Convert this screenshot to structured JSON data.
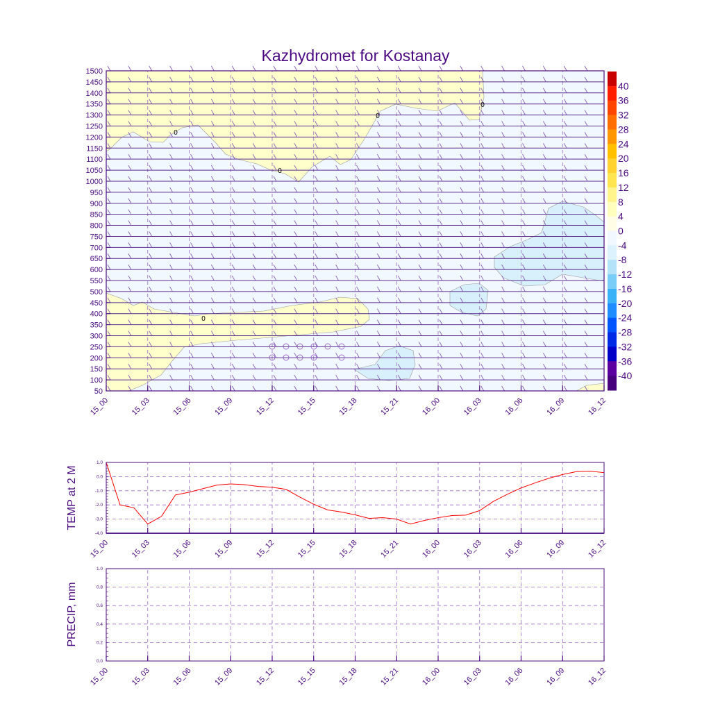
{
  "chart_data": [
    {
      "type": "heatmap",
      "title": "Kazhydromet for Kostanay",
      "y_ticks": [
        50,
        100,
        150,
        200,
        250,
        300,
        350,
        400,
        450,
        500,
        550,
        600,
        650,
        700,
        750,
        800,
        850,
        900,
        950,
        1000,
        1050,
        1100,
        1150,
        1200,
        1250,
        1300,
        1350,
        1400,
        1450,
        1500
      ],
      "ylim": [
        50,
        1500
      ],
      "x_ticks": [
        "15_00",
        "15_03",
        "15_06",
        "15_09",
        "15_12",
        "15_15",
        "15_18",
        "15_21",
        "16_00",
        "16_03",
        "16_06",
        "16_09",
        "16_12"
      ],
      "xlim_hours": [
        0,
        36
      ],
      "colorbar_labels": [
        "40",
        "36",
        "32",
        "28",
        "24",
        "20",
        "16",
        "12",
        "8",
        "4",
        "0",
        "-4",
        "-8",
        "-12",
        "-16",
        "-20",
        "-24",
        "-28",
        "-32",
        "-36",
        "-40"
      ],
      "colorbar_colors": [
        "#c80000",
        "#ff1e00",
        "#ff4600",
        "#ff6e00",
        "#ff9600",
        "#ffc000",
        "#ffd232",
        "#ffe650",
        "#fff58c",
        "#ffffbe",
        "#fffde6",
        "#f2f8ff",
        "#dcf2fc",
        "#b4e2f8",
        "#7acdf7",
        "#3ab2f7",
        "#1e8cff",
        "#0055ff",
        "#002ae6",
        "#0000c8",
        "#5a00a0",
        "#46007d"
      ],
      "contour_labels": [
        "0",
        "0",
        "0",
        "0",
        "0"
      ],
      "grid": true
    },
    {
      "type": "line",
      "ylabel": "TEMP at 2 M",
      "ylim": [
        -4.0,
        1.0
      ],
      "y_ticks": [
        "1.0",
        "0.0",
        "-1.0",
        "-2.0",
        "-3.0",
        "-4.0"
      ],
      "x_ticks": [
        "15_00",
        "15_03",
        "15_06",
        "15_09",
        "15_12",
        "15_15",
        "15_18",
        "15_21",
        "16_00",
        "16_03",
        "16_06",
        "16_09",
        "16_12"
      ],
      "x_hours": [
        0,
        1,
        2,
        3,
        4,
        5,
        6,
        7,
        8,
        9,
        10,
        11,
        12,
        13,
        14,
        15,
        16,
        17,
        18,
        19,
        20,
        21,
        22,
        23,
        24,
        25,
        26,
        27,
        28,
        29,
        30,
        31,
        32,
        33,
        34,
        35,
        36
      ],
      "values": [
        1.0,
        -2.0,
        -2.2,
        -3.35,
        -2.8,
        -1.3,
        -1.1,
        -0.85,
        -0.6,
        -0.52,
        -0.57,
        -0.7,
        -0.75,
        -0.9,
        -1.45,
        -1.95,
        -2.35,
        -2.5,
        -2.7,
        -2.95,
        -2.9,
        -3.0,
        -3.35,
        -3.1,
        -2.9,
        -2.75,
        -2.72,
        -2.4,
        -1.75,
        -1.25,
        -0.8,
        -0.45,
        -0.12,
        0.15,
        0.35,
        0.38,
        0.28
      ],
      "color": "#ff0000"
    },
    {
      "type": "line",
      "ylabel": "PRECIP, mm",
      "ylim": [
        0.0,
        1.0
      ],
      "y_ticks": [
        "1.0",
        "0.8",
        "0.6",
        "0.4",
        "0.2",
        "0.0"
      ],
      "x_ticks": [
        "15_00",
        "15_03",
        "15_06",
        "15_09",
        "15_12",
        "15_15",
        "15_18",
        "15_21",
        "16_00",
        "16_03",
        "16_06",
        "16_09",
        "16_12"
      ],
      "values": []
    }
  ]
}
